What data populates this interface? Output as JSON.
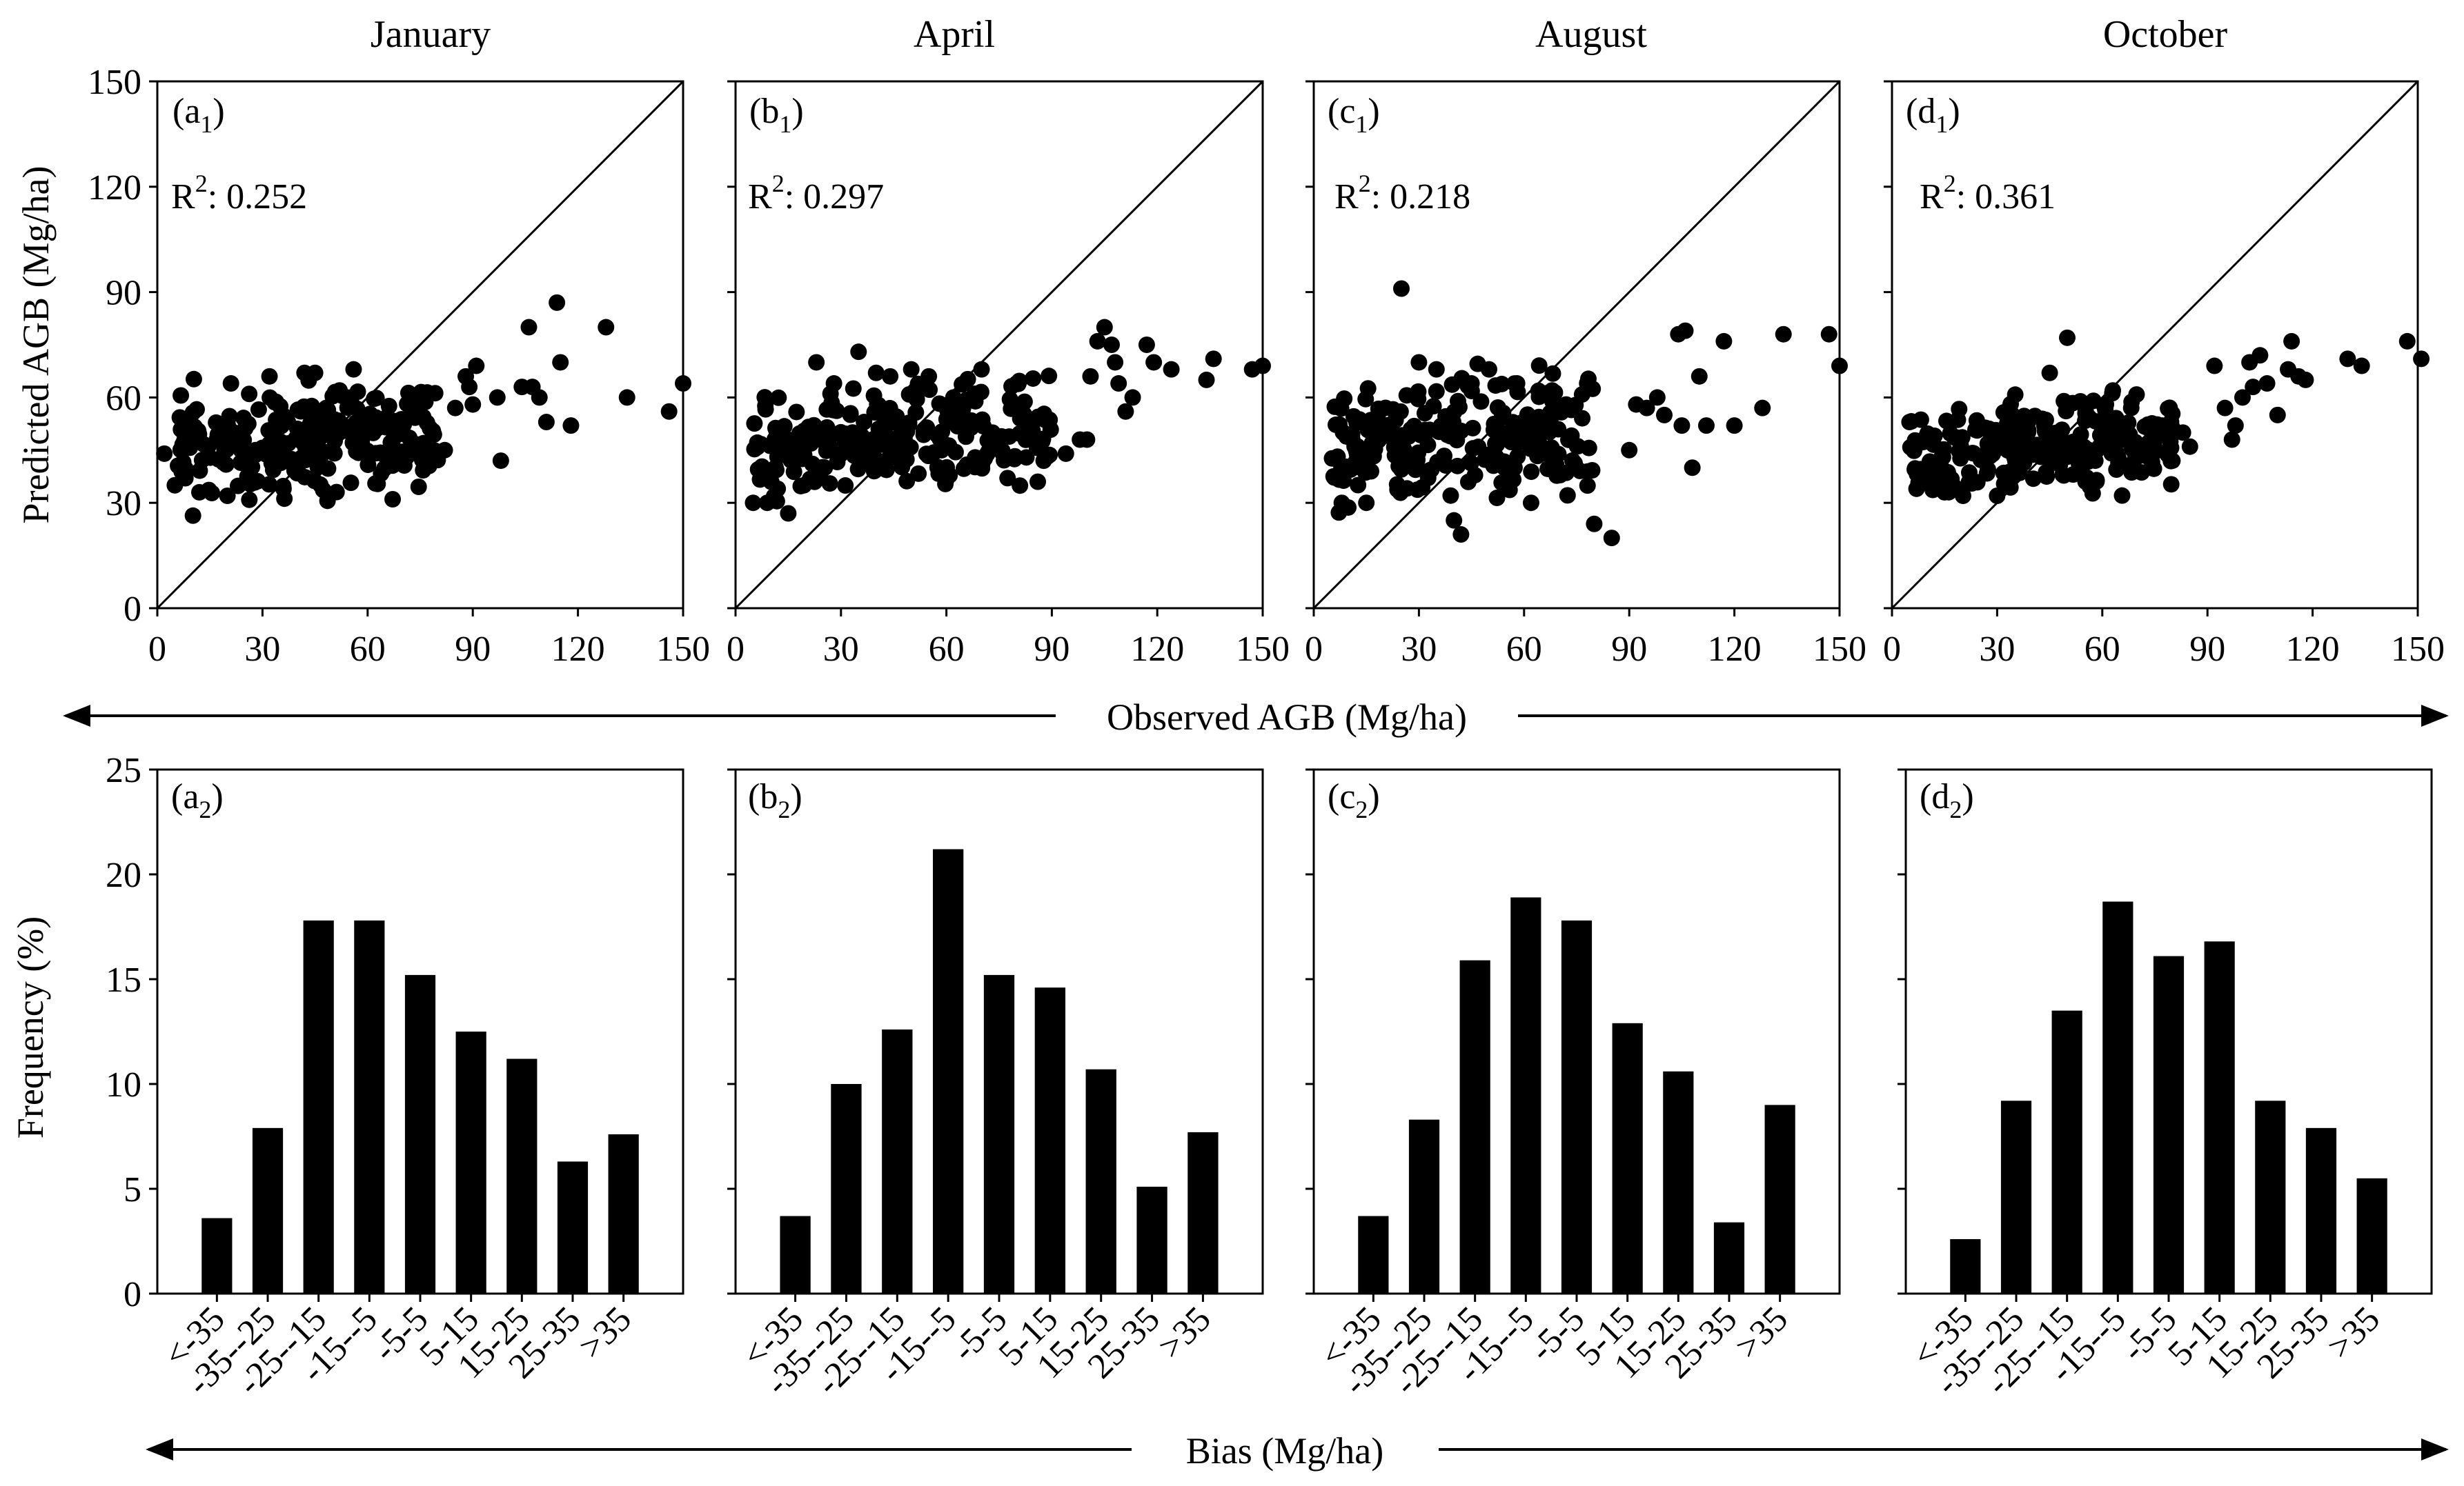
{
  "figure": {
    "months": [
      "January",
      "April",
      "August",
      "October"
    ],
    "scatter_ylabel": "Predicted AGB (Mg/ha)",
    "scatter_xlabel": "Observed AGB (Mg/ha)",
    "hist_ylabel": "Frequency (%)",
    "hist_xlabel": "Bias (Mg/ha)"
  },
  "chart_data": [
    {
      "type": "scatter",
      "panel": "a1",
      "panel_letter": "a",
      "panel_sub": "1",
      "month": "January",
      "r2_label": "R",
      "r2_sup": "2",
      "r2_value": ": 0.252",
      "xlim": [
        0,
        150
      ],
      "ylim": [
        0,
        150
      ],
      "xticks": [
        "0",
        "30",
        "60",
        "90",
        "120",
        "150"
      ],
      "yticks": [
        "0",
        "30",
        "60",
        "90",
        "120",
        "150"
      ],
      "xlabel": "Observed AGB (Mg/ha)",
      "ylabel": "Predicted AGB (Mg/ha)",
      "reference_line": "1:1",
      "points": [
        [
          2,
          44
        ],
        [
          5,
          35
        ],
        [
          8,
          37
        ],
        [
          8,
          53
        ],
        [
          12,
          33
        ],
        [
          20,
          32
        ],
        [
          21,
          64
        ],
        [
          28,
          45
        ],
        [
          32,
          66
        ],
        [
          36,
          34
        ],
        [
          42,
          67
        ],
        [
          45,
          67
        ],
        [
          52,
          62
        ],
        [
          56,
          68
        ],
        [
          76,
          47
        ],
        [
          82,
          45
        ],
        [
          85,
          57
        ],
        [
          88,
          66
        ],
        [
          89,
          63
        ],
        [
          90,
          58
        ],
        [
          91,
          69
        ],
        [
          97,
          60
        ],
        [
          98,
          42
        ],
        [
          104,
          63
        ],
        [
          106,
          80
        ],
        [
          107,
          63
        ],
        [
          109,
          60
        ],
        [
          111,
          53
        ],
        [
          114,
          87
        ],
        [
          115,
          70
        ],
        [
          118,
          52
        ],
        [
          128,
          80
        ],
        [
          134,
          60
        ],
        [
          146,
          56
        ],
        [
          150,
          64
        ]
      ],
      "cluster": {
        "count": 240,
        "seed": 11,
        "x_range": [
          5,
          80
        ],
        "y_center": 47,
        "y_spread": 7
      }
    },
    {
      "type": "scatter",
      "panel": "b1",
      "panel_letter": "b",
      "panel_sub": "1",
      "month": "April",
      "r2_label": "R",
      "r2_sup": "2",
      "r2_value": ": 0.297",
      "xlim": [
        0,
        150
      ],
      "ylim": [
        0,
        150
      ],
      "xticks": [
        "0",
        "30",
        "60",
        "90",
        "120",
        "150"
      ],
      "yticks": [
        "0",
        "30",
        "60",
        "90",
        "120",
        "150"
      ],
      "xlabel": "Observed AGB (Mg/ha)",
      "ylabel": "Predicted AGB (Mg/ha)",
      "reference_line": "1:1",
      "points": [
        [
          5,
          30
        ],
        [
          9,
          30
        ],
        [
          12,
          34
        ],
        [
          15,
          27
        ],
        [
          23,
          70
        ],
        [
          28,
          64
        ],
        [
          35,
          73
        ],
        [
          40,
          67
        ],
        [
          44,
          66
        ],
        [
          50,
          68
        ],
        [
          55,
          66
        ],
        [
          62,
          60
        ],
        [
          70,
          68
        ],
        [
          80,
          64
        ],
        [
          86,
          36
        ],
        [
          94,
          44
        ],
        [
          98,
          48
        ],
        [
          100,
          48
        ],
        [
          101,
          66
        ],
        [
          103,
          76
        ],
        [
          105,
          80
        ],
        [
          107,
          75
        ],
        [
          108,
          70
        ],
        [
          109,
          64
        ],
        [
          111,
          56
        ],
        [
          113,
          60
        ],
        [
          117,
          75
        ],
        [
          119,
          70
        ],
        [
          124,
          68
        ],
        [
          134,
          65
        ],
        [
          136,
          71
        ],
        [
          147,
          68
        ],
        [
          150,
          69
        ]
      ],
      "cluster": {
        "count": 240,
        "seed": 23,
        "x_range": [
          5,
          90
        ],
        "y_center": 48,
        "y_spread": 7
      }
    },
    {
      "type": "scatter",
      "panel": "c1",
      "panel_letter": "c",
      "panel_sub": "1",
      "month": "August",
      "r2_label": "R",
      "r2_sup": "2",
      "r2_value": ": 0.218",
      "xlim": [
        0,
        150
      ],
      "ylim": [
        0,
        150
      ],
      "xticks": [
        "0",
        "30",
        "60",
        "90",
        "120",
        "150"
      ],
      "yticks": [
        "0",
        "30",
        "60",
        "90",
        "120",
        "150"
      ],
      "xlabel": "Observed AGB (Mg/ha)",
      "ylabel": "Predicted AGB (Mg/ha)",
      "reference_line": "1:1",
      "points": [
        [
          8,
          30
        ],
        [
          15,
          30
        ],
        [
          25,
          91
        ],
        [
          30,
          70
        ],
        [
          35,
          68
        ],
        [
          40,
          25
        ],
        [
          42,
          21
        ],
        [
          45,
          64
        ],
        [
          50,
          68
        ],
        [
          58,
          64
        ],
        [
          62,
          30
        ],
        [
          68,
          62
        ],
        [
          72,
          58
        ],
        [
          78,
          64
        ],
        [
          80,
          24
        ],
        [
          85,
          20
        ],
        [
          90,
          45
        ],
        [
          92,
          58
        ],
        [
          95,
          57
        ],
        [
          98,
          60
        ],
        [
          100,
          55
        ],
        [
          104,
          78
        ],
        [
          105,
          52
        ],
        [
          106,
          79
        ],
        [
          108,
          40
        ],
        [
          110,
          66
        ],
        [
          112,
          52
        ],
        [
          117,
          76
        ],
        [
          120,
          52
        ],
        [
          128,
          57
        ],
        [
          134,
          78
        ],
        [
          147,
          78
        ],
        [
          150,
          69
        ]
      ],
      "cluster": {
        "count": 230,
        "seed": 37,
        "x_range": [
          5,
          80
        ],
        "y_center": 47,
        "y_spread": 8
      }
    },
    {
      "type": "scatter",
      "panel": "d1",
      "panel_letter": "d",
      "panel_sub": "1",
      "month": "October",
      "r2_label": "R",
      "r2_sup": "2",
      "r2_value": ": 0.361",
      "xlim": [
        0,
        150
      ],
      "ylim": [
        0,
        150
      ],
      "xticks": [
        "0",
        "30",
        "60",
        "90",
        "120",
        "150"
      ],
      "yticks": [
        "0",
        "30",
        "60",
        "90",
        "120",
        "150"
      ],
      "xlabel": "Observed AGB (Mg/ha)",
      "ylabel": "Predicted AGB (Mg/ha)",
      "reference_line": "1:1",
      "points": [
        [
          5,
          53
        ],
        [
          7,
          34
        ],
        [
          10,
          36
        ],
        [
          15,
          33
        ],
        [
          30,
          32
        ],
        [
          45,
          67
        ],
        [
          50,
          77
        ],
        [
          58,
          42
        ],
        [
          63,
          62
        ],
        [
          77,
          52
        ],
        [
          80,
          42
        ],
        [
          83,
          50
        ],
        [
          85,
          46
        ],
        [
          92,
          69
        ],
        [
          95,
          57
        ],
        [
          97,
          48
        ],
        [
          98,
          52
        ],
        [
          100,
          60
        ],
        [
          102,
          70
        ],
        [
          103,
          63
        ],
        [
          105,
          72
        ],
        [
          107,
          64
        ],
        [
          110,
          55
        ],
        [
          113,
          68
        ],
        [
          114,
          76
        ],
        [
          116,
          66
        ],
        [
          118,
          65
        ],
        [
          130,
          71
        ],
        [
          134,
          69
        ],
        [
          147,
          76
        ],
        [
          151,
          71
        ]
      ],
      "cluster": {
        "count": 240,
        "seed": 51,
        "x_range": [
          5,
          80
        ],
        "y_center": 46,
        "y_spread": 6
      }
    },
    {
      "type": "bar",
      "panel": "a2",
      "panel_letter": "a",
      "panel_sub": "2",
      "categories": [
        "<-35",
        "-35--25",
        "-25--15",
        "-15--5",
        "-5-5",
        "5-15",
        "15-25",
        "25-35",
        ">35"
      ],
      "values": [
        3.6,
        7.9,
        17.8,
        17.8,
        15.2,
        12.5,
        11.2,
        6.3,
        7.6
      ],
      "ylim": [
        0,
        25
      ],
      "yticks": [
        "0",
        "5",
        "10",
        "15",
        "20",
        "25"
      ],
      "xlabel": "Bias (Mg/ha)",
      "ylabel": "Frequency (%)"
    },
    {
      "type": "bar",
      "panel": "b2",
      "panel_letter": "b",
      "panel_sub": "2",
      "categories": [
        "<-35",
        "-35--25",
        "-25--15",
        "-15--5",
        "-5-5",
        "5-15",
        "15-25",
        "25-35",
        ">35"
      ],
      "values": [
        3.7,
        10.0,
        12.6,
        21.2,
        15.2,
        14.6,
        10.7,
        5.1,
        7.7
      ],
      "ylim": [
        0,
        25
      ],
      "yticks": [
        "0",
        "5",
        "10",
        "15",
        "20",
        "25"
      ],
      "xlabel": "Bias (Mg/ha)",
      "ylabel": "Frequency (%)"
    },
    {
      "type": "bar",
      "panel": "c2",
      "panel_letter": "c",
      "panel_sub": "2",
      "categories": [
        "<-35",
        "-35--25",
        "-25--15",
        "-15--5",
        "-5-5",
        "5-15",
        "15-25",
        "25-35",
        ">35"
      ],
      "values": [
        3.7,
        8.3,
        15.9,
        18.9,
        17.8,
        12.9,
        10.6,
        3.4,
        9.0
      ],
      "ylim": [
        0,
        25
      ],
      "yticks": [
        "0",
        "5",
        "10",
        "15",
        "20",
        "25"
      ],
      "xlabel": "Bias (Mg/ha)",
      "ylabel": "Frequency (%)"
    },
    {
      "type": "bar",
      "panel": "d2",
      "panel_letter": "d",
      "panel_sub": "2",
      "categories": [
        "<-35",
        "-35--25",
        "-25--15",
        "-15--5",
        "-5-5",
        "5-15",
        "15-25",
        "25-35",
        ">35"
      ],
      "values": [
        2.6,
        9.2,
        13.5,
        18.7,
        16.1,
        16.8,
        9.2,
        7.9,
        5.5
      ],
      "ylim": [
        0,
        25
      ],
      "yticks": [
        "0",
        "5",
        "10",
        "15",
        "20",
        "25"
      ],
      "xlabel": "Bias (Mg/ha)",
      "ylabel": "Frequency (%)"
    }
  ]
}
